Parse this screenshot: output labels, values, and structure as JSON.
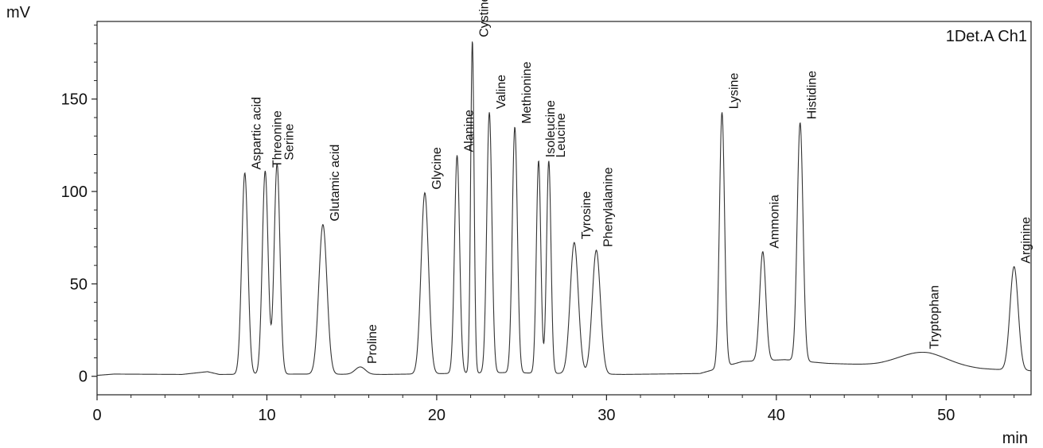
{
  "chart_data": {
    "type": "line",
    "title": "",
    "channel_label": "1Det.A Ch1",
    "xlabel": "min",
    "ylabel": "mV",
    "xlim": [
      0,
      55
    ],
    "ylim": [
      -10,
      192
    ],
    "x_ticks": [
      0,
      10,
      20,
      30,
      40,
      50
    ],
    "y_ticks": [
      0,
      50,
      100,
      150
    ],
    "grid": false,
    "baseline": [
      [
        0,
        0.5
      ],
      [
        1,
        1.2
      ],
      [
        5,
        1.0
      ],
      [
        6.5,
        2.5
      ],
      [
        7.2,
        1.0
      ],
      [
        12,
        1.2
      ],
      [
        17,
        1.0
      ],
      [
        24,
        2.0
      ],
      [
        31,
        1.0
      ],
      [
        35.5,
        1.5
      ],
      [
        38,
        8
      ],
      [
        40.5,
        9
      ],
      [
        43,
        7
      ],
      [
        46,
        6
      ],
      [
        49,
        6
      ],
      [
        52,
        4
      ],
      [
        55,
        3
      ]
    ],
    "series": [
      {
        "name": "",
        "peaks": [
          {
            "label": "Aspartic acid",
            "rt": 8.7,
            "height": 109,
            "width": 0.18
          },
          {
            "label": "Threonine",
            "rt": 9.9,
            "height": 110,
            "width": 0.17
          },
          {
            "label": "Serine",
            "rt": 10.6,
            "height": 114,
            "width": 0.17
          },
          {
            "label": "Glutamic acid",
            "rt": 13.3,
            "height": 81,
            "width": 0.24
          },
          {
            "label": "Proline",
            "rt": 15.5,
            "height": 4,
            "width": 0.3
          },
          {
            "label": "Glycine",
            "rt": 19.3,
            "height": 98,
            "width": 0.22
          },
          {
            "label": "Alanine",
            "rt": 21.2,
            "height": 118,
            "width": 0.15
          },
          {
            "label": "Cystine",
            "rt": 22.1,
            "height": 180,
            "width": 0.1
          },
          {
            "label": "Valine",
            "rt": 23.1,
            "height": 141,
            "width": 0.15
          },
          {
            "label": "Methionine",
            "rt": 24.6,
            "height": 133,
            "width": 0.15
          },
          {
            "label": "Isoleucine",
            "rt": 26.0,
            "height": 115,
            "width": 0.13
          },
          {
            "label": "Leucine",
            "rt": 26.6,
            "height": 115,
            "width": 0.13
          },
          {
            "label": "Tyrosine",
            "rt": 28.1,
            "height": 71,
            "width": 0.24
          },
          {
            "label": "Phenylalanine",
            "rt": 29.4,
            "height": 67,
            "width": 0.24
          },
          {
            "label": "Lysine",
            "rt": 36.8,
            "height": 138,
            "width": 0.15
          },
          {
            "label": "Ammonia",
            "rt": 39.2,
            "height": 59,
            "width": 0.18
          },
          {
            "label": "Histidine",
            "rt": 41.4,
            "height": 129,
            "width": 0.17
          },
          {
            "label": "Tryptophan",
            "rt": 48.6,
            "height": 7,
            "width": 1.4
          },
          {
            "label": "Arginine",
            "rt": 54.0,
            "height": 56,
            "width": 0.24
          }
        ]
      }
    ]
  }
}
